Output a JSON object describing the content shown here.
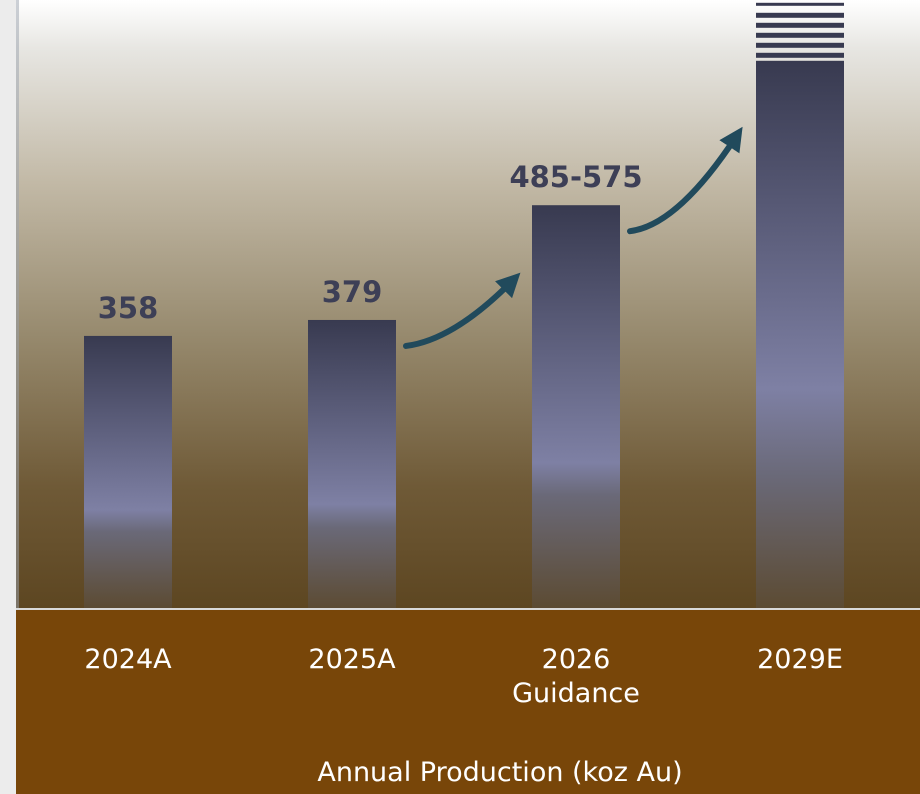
{
  "chart_data": {
    "type": "bar",
    "categories": [
      "2024A",
      "2025A",
      "2026\nGuidance",
      "2029E"
    ],
    "values": [
      358,
      379,
      530,
      720
    ],
    "value_ranges": [
      null,
      null,
      [
        485,
        575
      ],
      null
    ],
    "data_labels": [
      "358",
      "379",
      "485-575",
      ""
    ],
    "xlabel": "Annual Production (koz Au)",
    "ylim": [
      0,
      800
    ],
    "grid": false,
    "legend": "none",
    "colors": {
      "bar_top": "#383a50",
      "bar_mid": "#7e80a4",
      "plot_top": "#ffffff",
      "plot_bottom": "#5d4621",
      "axis_band": "#784609",
      "arrow": "#214a5c",
      "label": "#3d3f56",
      "page_bg": "#ececec"
    }
  }
}
